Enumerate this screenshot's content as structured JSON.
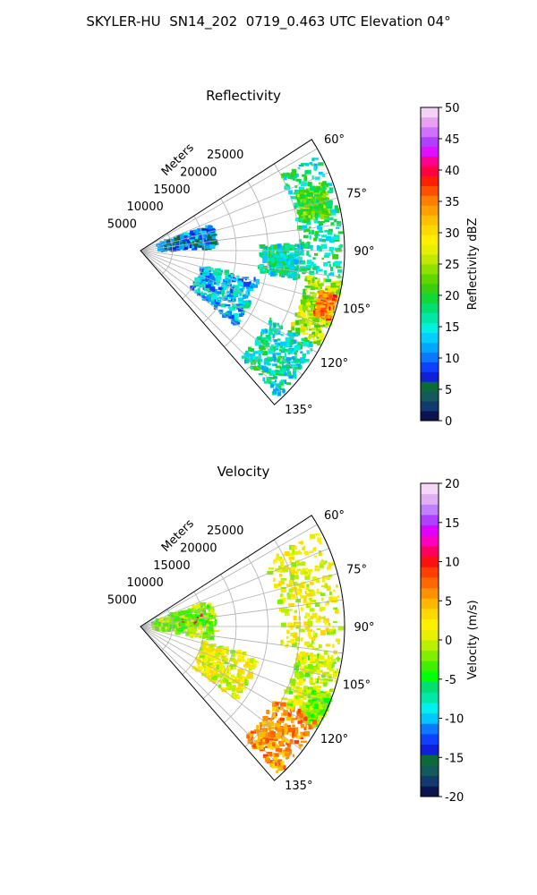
{
  "title": "SKYLER-HU  SN14_202  0719_0.463 UTC Elevation 04°",
  "chart_data": [
    {
      "type": "polar-sector-heatmap",
      "title": "Reflectivity",
      "radial_label": "Meters",
      "radial_ticks": [
        5000,
        10000,
        15000,
        20000,
        25000
      ],
      "radial_range": [
        0,
        32000
      ],
      "azimuth_ticks": [
        "60°",
        "75°",
        "90°",
        "105°",
        "120°",
        "135°"
      ],
      "azimuth_range_deg": [
        57,
        139
      ],
      "colorbar": {
        "label": "Reflectivity dBZ",
        "range": [
          0,
          50
        ],
        "ticks": [
          0,
          5,
          10,
          15,
          20,
          25,
          30,
          35,
          40,
          45,
          50
        ]
      },
      "echo_regions": [
        {
          "az": [
            62,
            98
          ],
          "r": [
            25000,
            31500
          ],
          "dbz": 17
        },
        {
          "az": [
            70,
            80
          ],
          "r": [
            26000,
            30500
          ],
          "dbz": 22
        },
        {
          "az": [
            99,
            118
          ],
          "r": [
            26500,
            32000
          ],
          "dbz": 25
        },
        {
          "az": [
            103,
            110
          ],
          "r": [
            29000,
            31500
          ],
          "dbz": 35
        },
        {
          "az": [
            118,
            137
          ],
          "r": [
            23000,
            31500
          ],
          "dbz": 16
        },
        {
          "az": [
            104,
            128
          ],
          "r": [
            10000,
            19000
          ],
          "dbz": 13
        },
        {
          "az": [
            88,
            100
          ],
          "r": [
            19000,
            25000
          ],
          "dbz": 16
        },
        {
          "az": [
            70,
            88
          ],
          "r": [
            3000,
            12000
          ],
          "dbz": 10
        }
      ]
    },
    {
      "type": "polar-sector-heatmap",
      "title": "Velocity",
      "radial_label": "Meters",
      "radial_ticks": [
        5000,
        10000,
        15000,
        20000,
        25000
      ],
      "radial_range": [
        0,
        32000
      ],
      "azimuth_ticks": [
        "60°",
        "75°",
        "90°",
        "105°",
        "120°",
        "135°"
      ],
      "azimuth_range_deg": [
        57,
        139
      ],
      "colorbar": {
        "label": "Velocity (m/s)",
        "range": [
          -20,
          20
        ],
        "ticks": [
          -20,
          -15,
          -10,
          -5,
          0,
          5,
          10,
          15,
          20
        ]
      },
      "echo_regions": [
        {
          "az": [
            62,
            98
          ],
          "r": [
            22000,
            31500
          ],
          "vel": 1
        },
        {
          "az": [
            99,
            118
          ],
          "r": [
            25000,
            32000
          ],
          "vel": 0
        },
        {
          "az": [
            110,
            120
          ],
          "r": [
            29000,
            32000
          ],
          "vel": -2
        },
        {
          "az": [
            118,
            137
          ],
          "r": [
            24000,
            31500
          ],
          "vel": 6
        },
        {
          "az": [
            104,
            128
          ],
          "r": [
            10000,
            19000
          ],
          "vel": 1
        },
        {
          "az": [
            80,
            88
          ],
          "r": [
            5000,
            11000
          ],
          "vel": 9
        },
        {
          "az": [
            70,
            100
          ],
          "r": [
            2000,
            12000
          ],
          "vel": -2
        }
      ]
    }
  ]
}
